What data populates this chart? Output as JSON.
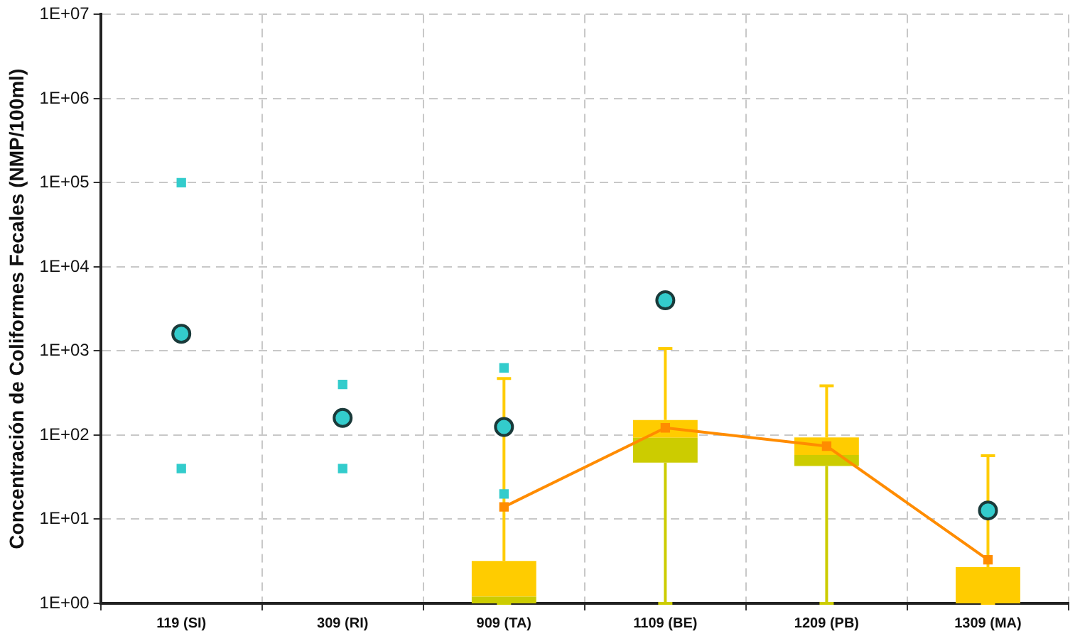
{
  "chart_data": {
    "type": "box",
    "ylabel": "Concentración de Coliformes Fecales (NMP/100ml)",
    "categories": [
      "119 (SI)",
      "309 (RI)",
      "909 (TA)",
      "1109 (BE)",
      "1209 (PB)",
      "1309 (MA)"
    ],
    "log": "y",
    "ylim": [
      1,
      10000000
    ],
    "yticks": [
      {
        "value": 1,
        "label": "1E+00"
      },
      {
        "value": 10,
        "label": "1E+01"
      },
      {
        "value": 100,
        "label": "1E+02"
      },
      {
        "value": 1000,
        "label": "1E+03"
      },
      {
        "value": 10000,
        "label": "1E+04"
      },
      {
        "value": 100000,
        "label": "1E+05"
      },
      {
        "value": 1000000,
        "label": "1E+06"
      },
      {
        "value": 10000000,
        "label": "1E+07"
      }
    ],
    "grid": true,
    "legend": false,
    "series": [
      {
        "color": "#ffcc00",
        "colors": [
          "#cccc00",
          "#cccc00",
          "#cccc00",
          "#cccc00",
          "#cccc00",
          "#ffcc00"
        ],
        "boxes": [
          null,
          null,
          {
            "low": 1,
            "q1": 1,
            "median": 1.2,
            "q3": 3.2,
            "high": 470
          },
          {
            "low": 1,
            "q1": 47,
            "median": 93,
            "q3": 151,
            "high": 1070
          },
          {
            "low": 1,
            "q1": 43,
            "median": 58,
            "q3": 94,
            "high": 386
          },
          {
            "low": 1,
            "q1": 1,
            "median": 1,
            "q3": 2.7,
            "high": 57
          }
        ]
      },
      {
        "type": "line",
        "color": "#ff8c00",
        "marker": "square",
        "values": [
          null,
          null,
          14,
          122,
          74,
          3.3
        ]
      },
      {
        "type": "scatter",
        "color": "#33cccc",
        "marker": "circle",
        "x": [
          "119 (SI)",
          "309 (RI)",
          "909 (TA)",
          "1109 (BE)",
          "1309 (MA)"
        ],
        "values": [
          1600,
          160,
          125,
          4000,
          12.7
        ]
      },
      {
        "type": "scatter",
        "color": "#33cccc",
        "marker": "square",
        "x": [
          "119 (SI)",
          "119 (SI)",
          "309 (RI)",
          "309 (RI)",
          "909 (TA)",
          "909 (TA)"
        ],
        "values": [
          100000,
          40,
          400,
          40,
          630,
          20
        ]
      }
    ]
  }
}
